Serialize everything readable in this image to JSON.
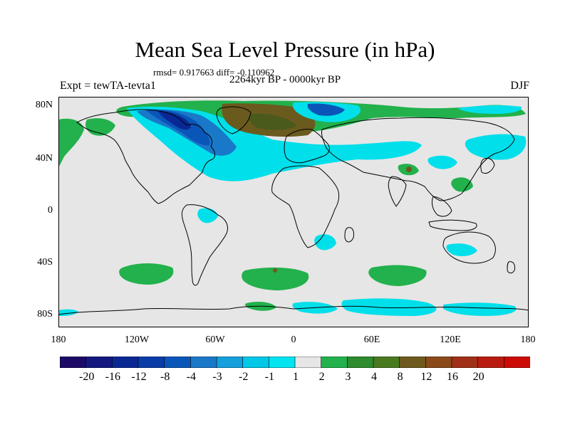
{
  "title": "Mean Sea Level Pressure (in hPa)",
  "stats": "rmsd= 0.917663 diff= -0.110962",
  "period": "2264kyr BP - 0000kyr BP",
  "experiment": "Expt = tewTA-tevta1",
  "season": "DJF",
  "lat_labels": [
    "80N",
    "40N",
    "0",
    "40S",
    "80S"
  ],
  "lon_labels": [
    "180",
    "120W",
    "60W",
    "0",
    "60E",
    "120E",
    "180"
  ],
  "colorbar": {
    "labels": [
      "-20",
      "-16",
      "-12",
      "-8",
      "-4",
      "-3",
      "-2",
      "-1",
      "1",
      "2",
      "3",
      "4",
      "8",
      "12",
      "16",
      "20"
    ],
    "colors": [
      "#1c0a66",
      "#14187e",
      "#0a2894",
      "#0a3ca8",
      "#0a55b8",
      "#1a78c8",
      "#14a0dc",
      "#00c8e6",
      "#00e4f0",
      "#e6e6e6",
      "#22b14c",
      "#2e8b2e",
      "#4a7a20",
      "#6e5a1e",
      "#8a4a1a",
      "#a03018",
      "#b81c10",
      "#cc0a06"
    ]
  },
  "colors": {
    "neutral": "#e6e6e6",
    "light_cyan": "#00dfea",
    "cyan": "#1ec8e8",
    "mid_blue": "#1a78c8",
    "blue": "#0a55b8",
    "dark_blue": "#0a2894",
    "green": "#22b14c",
    "brown": "#6b5a1e",
    "dark_olive": "#4a5a1c",
    "coast": "#000000"
  }
}
